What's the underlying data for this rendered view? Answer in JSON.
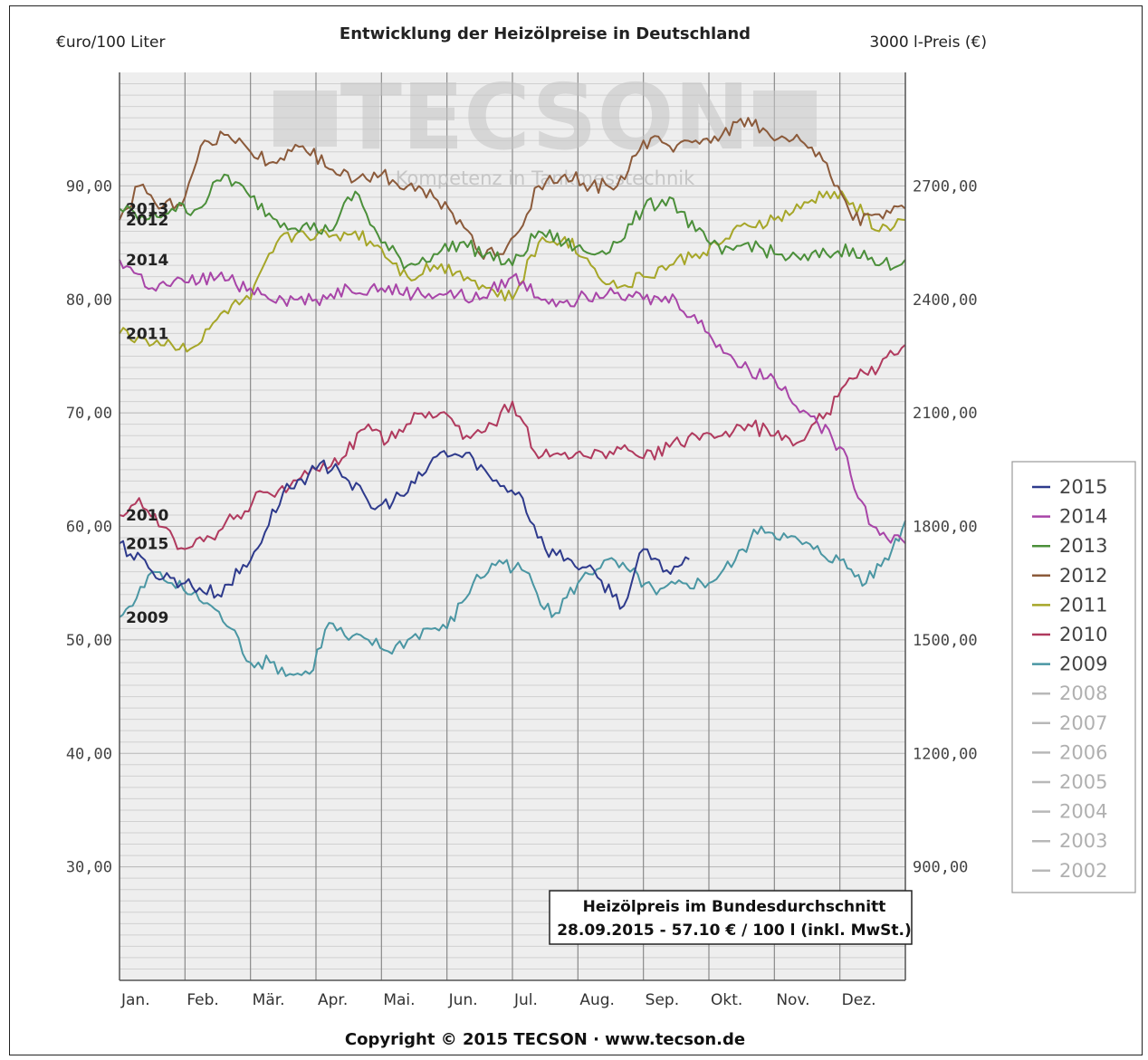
{
  "chart_data": {
    "type": "line",
    "title": "Entwicklung der Heizölpreise in Deutschland",
    "ylabel_left": "€uro/100 Liter",
    "ylabel_right": "3000 l-Preis (€)",
    "copyright": "Copyright © 2015 TECSON · www.tecson.de",
    "watermark": {
      "brand": "TECSON",
      "tagline": "Kompetenz in Tankmesstechnik"
    },
    "infobox": {
      "line1": "Heizölpreis im Bundesdurchschnitt",
      "line2": "28.09.2015 - 57.10 € / 100 l (inkl. MwSt.)"
    },
    "x_categories": [
      "Jan.",
      "Feb.",
      "Mär.",
      "Apr.",
      "Mai.",
      "Jun.",
      "Jul.",
      "Aug.",
      "Sep.",
      "Okt.",
      "Nov.",
      "Dez."
    ],
    "ylim": [
      20,
      100
    ],
    "y_ticks": [
      30,
      40,
      50,
      60,
      70,
      80,
      90
    ],
    "y_tick_labels": [
      "30,00",
      "40,00",
      "50,00",
      "60,00",
      "70,00",
      "80,00",
      "90,00"
    ],
    "y2_tick_labels": [
      "900,00",
      "1200,00",
      "1500,00",
      "1800,00",
      "2100,00",
      "2400,00",
      "2700,00"
    ],
    "grid": true,
    "legend_position": "right",
    "series": [
      {
        "name": "2015",
        "color": "#2e3a8c",
        "label": "2015",
        "x": [
          0,
          0.5,
          1,
          1.5,
          2,
          2.5,
          3,
          3.3,
          3.5,
          3.9,
          4.4,
          4.9,
          5.4,
          5.7,
          6.1,
          6.5,
          6.9,
          7.3,
          7.7,
          8,
          8.3,
          8.7
        ],
        "y": [
          58.5,
          56,
          55,
          54,
          57,
          63,
          65,
          65.5,
          64,
          61.5,
          63,
          66.5,
          66,
          64,
          63,
          58,
          57,
          55.5,
          53,
          58,
          56,
          57.1
        ]
      },
      {
        "name": "2014",
        "color": "#a845a8",
        "label": "2014",
        "x": [
          0,
          0.5,
          1,
          1.5,
          2,
          2.5,
          3,
          3.5,
          4,
          4.5,
          5,
          5.5,
          6,
          6.5,
          7,
          7.5,
          8,
          8.5,
          9,
          9.5,
          10,
          10.5,
          11,
          11.5,
          12
        ],
        "y": [
          83.5,
          81,
          81.5,
          82,
          81,
          80,
          80,
          81,
          81,
          80.5,
          80.5,
          80,
          82,
          80,
          80,
          81,
          80,
          80,
          77,
          74,
          73,
          70,
          67,
          60,
          58.5
        ]
      },
      {
        "name": "2013",
        "color": "#4b8f3a",
        "label": "2013",
        "x": [
          0,
          0.4,
          0.8,
          1.2,
          1.6,
          2,
          2.4,
          2.8,
          3.2,
          3.6,
          4,
          4.4,
          4.8,
          5.2,
          5.6,
          6,
          6.4,
          6.8,
          7.2,
          7.6,
          8,
          8.4,
          8.8,
          9.2,
          9.6,
          10,
          10.4,
          10.8,
          11.2,
          11.6,
          12
        ],
        "y": [
          88,
          87,
          88,
          88,
          91,
          89,
          87,
          86.5,
          86,
          89.5,
          85,
          83,
          84,
          85,
          84,
          83,
          86,
          85,
          84,
          85,
          88,
          89,
          86,
          84,
          85,
          84,
          83.5,
          84,
          84.5,
          83,
          83.5
        ]
      },
      {
        "name": "2012",
        "color": "#8b5a3a",
        "label": "2012",
        "x": [
          0,
          0.3,
          0.6,
          1,
          1.3,
          1.6,
          2,
          2.4,
          2.8,
          3.2,
          3.6,
          4,
          4.4,
          4.8,
          5.2,
          5.5,
          5.8,
          6.1,
          6.4,
          6.8,
          7.2,
          7.6,
          8,
          8.4,
          8.8,
          9.2,
          9.6,
          10,
          10.4,
          10.8,
          11.2,
          11.6,
          12
        ],
        "y": [
          87,
          90,
          88,
          89,
          94,
          94.5,
          93,
          92,
          93.5,
          91.5,
          90.5,
          91,
          90,
          89,
          87,
          84,
          84,
          86,
          90,
          91,
          90,
          90,
          94,
          93.5,
          94,
          94.5,
          96,
          94,
          94,
          92,
          87,
          87.5,
          88
        ]
      },
      {
        "name": "2011",
        "color": "#a6a628",
        "label": "2011",
        "x": [
          0,
          0.4,
          0.8,
          1.2,
          1.6,
          2,
          2.4,
          2.8,
          3.2,
          3.6,
          4,
          4.4,
          4.8,
          5.2,
          5.6,
          6,
          6.4,
          6.8,
          7.2,
          7.6,
          8,
          8.4,
          8.8,
          9.2,
          9.6,
          10,
          10.4,
          10.8,
          11.2,
          11.6,
          12
        ],
        "y": [
          77,
          76.5,
          76,
          76,
          79,
          80,
          85,
          86,
          85.5,
          86,
          84.5,
          82,
          83,
          82.5,
          81,
          80,
          85,
          85.5,
          83,
          81,
          82,
          83,
          84,
          85,
          86.5,
          87,
          88,
          89.5,
          88.5,
          86,
          87
        ]
      },
      {
        "name": "2010",
        "color": "#b03a5e",
        "label": "2010",
        "x": [
          0,
          0.3,
          0.6,
          1,
          1.4,
          1.8,
          2.2,
          2.6,
          3,
          3.4,
          3.8,
          4.1,
          4.5,
          4.9,
          5.3,
          5.7,
          6,
          6.4,
          6.8,
          7.2,
          7.6,
          8,
          8.4,
          8.8,
          9.2,
          9.6,
          10,
          10.4,
          10.8,
          11.2,
          11.6,
          12
        ],
        "y": [
          61,
          62.5,
          60,
          58,
          59,
          61,
          63,
          63.5,
          65,
          66,
          69,
          67.5,
          70,
          70,
          68,
          69,
          71,
          66,
          66.5,
          66,
          67,
          66,
          67,
          68,
          68,
          69,
          68,
          67.5,
          70,
          73,
          74,
          76
        ]
      },
      {
        "name": "2009",
        "color": "#4a96a3",
        "label": "2009",
        "x": [
          0,
          0.2,
          0.5,
          0.8,
          1.1,
          1.4,
          1.7,
          2,
          2.3,
          2.6,
          2.9,
          3.2,
          3.5,
          3.8,
          4.1,
          4.4,
          4.7,
          5,
          5.4,
          5.8,
          6.2,
          6.6,
          7,
          7.4,
          7.8,
          8.2,
          8.6,
          9,
          9.4,
          9.8,
          10.2,
          10.6,
          11,
          11.4,
          11.8,
          12
        ],
        "y": [
          52,
          53,
          56,
          55,
          54,
          53,
          51,
          48,
          48,
          47,
          47,
          51.5,
          50,
          50,
          49,
          50,
          51,
          51,
          55,
          57,
          56,
          52,
          55,
          57,
          56,
          54,
          55,
          55,
          57,
          60,
          59,
          58,
          57,
          55,
          58,
          60.5
        ]
      },
      {
        "name": "2008",
        "color": "#b8b8b8",
        "label": ""
      },
      {
        "name": "2007",
        "color": "#b8b8b8",
        "label": ""
      },
      {
        "name": "2006",
        "color": "#b8b8b8",
        "label": ""
      },
      {
        "name": "2005",
        "color": "#b8b8b8",
        "label": ""
      },
      {
        "name": "2004",
        "color": "#b8b8b8",
        "label": ""
      },
      {
        "name": "2003",
        "color": "#b8b8b8",
        "label": ""
      },
      {
        "name": "2002",
        "color": "#b8b8b8",
        "label": ""
      }
    ]
  }
}
